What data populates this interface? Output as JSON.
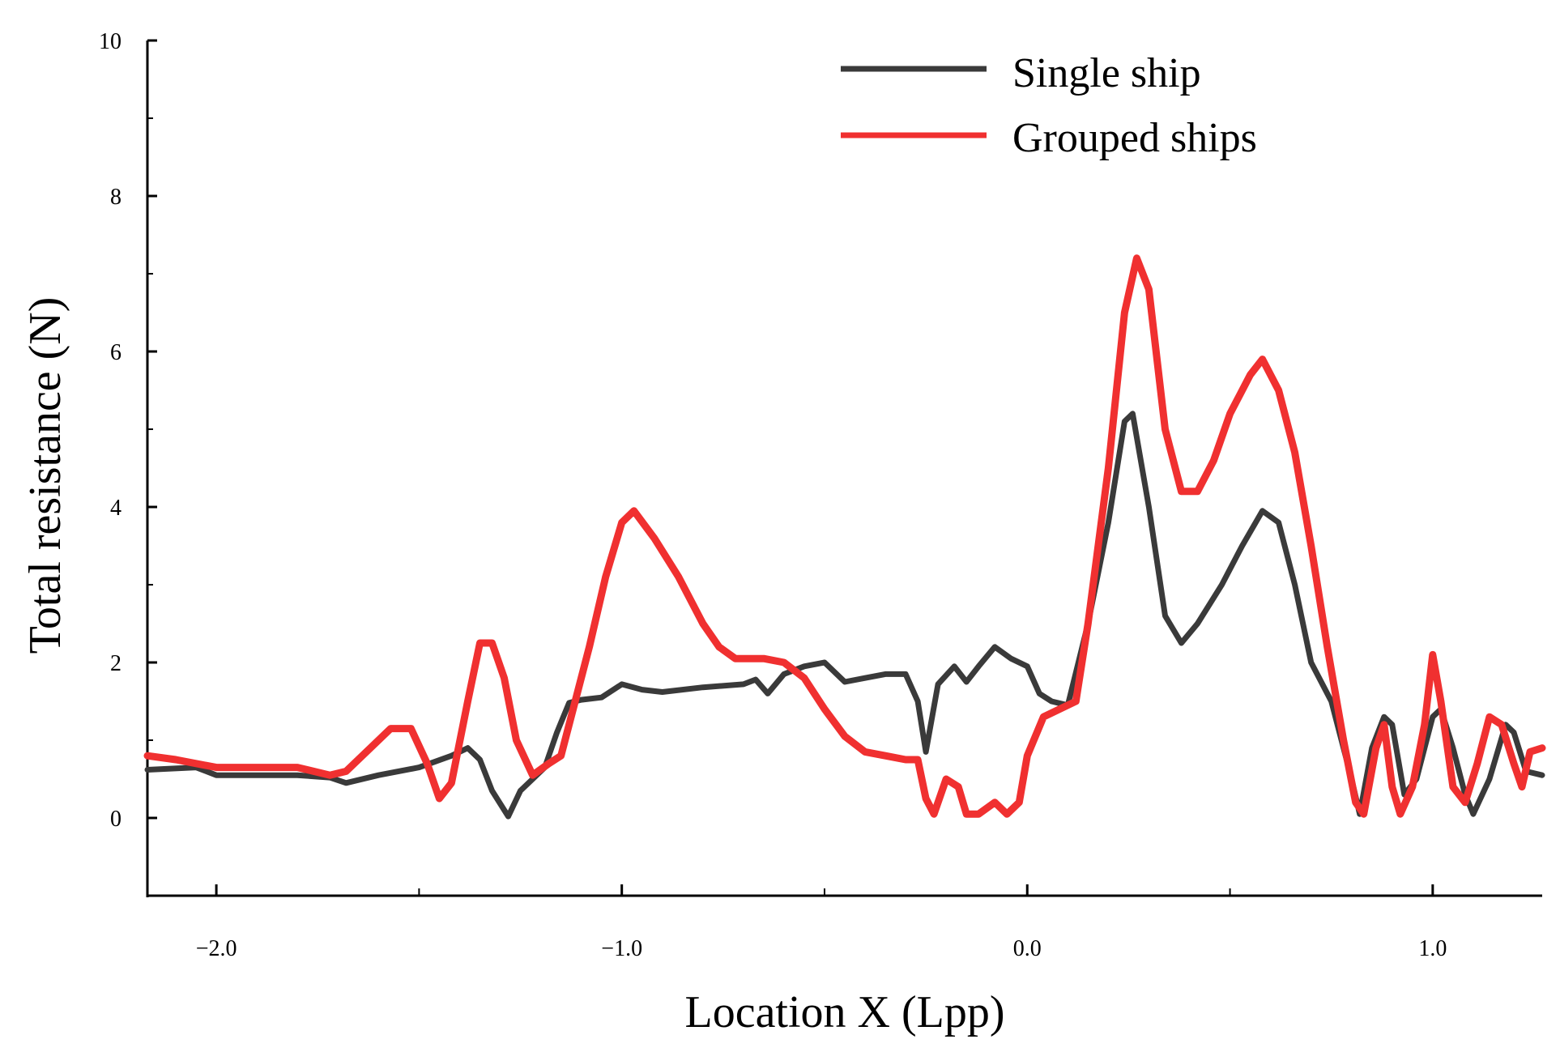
{
  "chart_data": {
    "type": "line",
    "title": "",
    "xlabel": "Location X (Lpp)",
    "ylabel": "Total resistance (N)",
    "xlim": [
      -2.17,
      1.27
    ],
    "ylim": [
      -1,
      10
    ],
    "x_ticks": [
      -2.0,
      -1.0,
      0.0,
      1.0
    ],
    "x_tick_labels": [
      "−2.0",
      "−1.0",
      "0.0",
      "1.0"
    ],
    "x_minor_ticks": [
      -1.5,
      -0.5,
      0.5
    ],
    "y_ticks": [
      0,
      2,
      4,
      6,
      8,
      10
    ],
    "y_tick_labels": [
      "0",
      "2",
      "4",
      "6",
      "8",
      "10"
    ],
    "grid": false,
    "legend_position": "top-right",
    "series": [
      {
        "name": "Single ship",
        "color": "#3a3a3a",
        "points": [
          [
            -2.17,
            0.62
          ],
          [
            -2.05,
            0.65
          ],
          [
            -2.0,
            0.55
          ],
          [
            -1.9,
            0.55
          ],
          [
            -1.8,
            0.55
          ],
          [
            -1.72,
            0.52
          ],
          [
            -1.68,
            0.45
          ],
          [
            -1.6,
            0.55
          ],
          [
            -1.5,
            0.65
          ],
          [
            -1.42,
            0.8
          ],
          [
            -1.38,
            0.9
          ],
          [
            -1.35,
            0.75
          ],
          [
            -1.32,
            0.35
          ],
          [
            -1.28,
            0.02
          ],
          [
            -1.25,
            0.35
          ],
          [
            -1.22,
            0.5
          ],
          [
            -1.19,
            0.65
          ],
          [
            -1.16,
            1.1
          ],
          [
            -1.13,
            1.48
          ],
          [
            -1.1,
            1.52
          ],
          [
            -1.05,
            1.55
          ],
          [
            -1.0,
            1.72
          ],
          [
            -0.95,
            1.65
          ],
          [
            -0.9,
            1.62
          ],
          [
            -0.8,
            1.68
          ],
          [
            -0.7,
            1.72
          ],
          [
            -0.67,
            1.78
          ],
          [
            -0.64,
            1.6
          ],
          [
            -0.6,
            1.85
          ],
          [
            -0.55,
            1.95
          ],
          [
            -0.5,
            2.0
          ],
          [
            -0.45,
            1.75
          ],
          [
            -0.4,
            1.8
          ],
          [
            -0.35,
            1.85
          ],
          [
            -0.3,
            1.85
          ],
          [
            -0.27,
            1.5
          ],
          [
            -0.25,
            0.85
          ],
          [
            -0.22,
            1.72
          ],
          [
            -0.18,
            1.95
          ],
          [
            -0.15,
            1.75
          ],
          [
            -0.12,
            1.95
          ],
          [
            -0.08,
            2.2
          ],
          [
            -0.04,
            2.05
          ],
          [
            0.0,
            1.95
          ],
          [
            0.03,
            1.6
          ],
          [
            0.06,
            1.5
          ],
          [
            0.1,
            1.45
          ],
          [
            0.15,
            2.5
          ],
          [
            0.2,
            3.8
          ],
          [
            0.24,
            5.1
          ],
          [
            0.26,
            5.2
          ],
          [
            0.3,
            4.0
          ],
          [
            0.34,
            2.6
          ],
          [
            0.38,
            2.25
          ],
          [
            0.42,
            2.5
          ],
          [
            0.48,
            3.0
          ],
          [
            0.53,
            3.5
          ],
          [
            0.58,
            3.95
          ],
          [
            0.62,
            3.8
          ],
          [
            0.66,
            3.0
          ],
          [
            0.7,
            2.0
          ],
          [
            0.75,
            1.5
          ],
          [
            0.8,
            0.5
          ],
          [
            0.82,
            0.05
          ],
          [
            0.85,
            0.9
          ],
          [
            0.88,
            1.3
          ],
          [
            0.9,
            1.2
          ],
          [
            0.93,
            0.3
          ],
          [
            0.96,
            0.5
          ],
          [
            1.0,
            1.3
          ],
          [
            1.02,
            1.4
          ],
          [
            1.05,
            0.9
          ],
          [
            1.08,
            0.3
          ],
          [
            1.1,
            0.05
          ],
          [
            1.14,
            0.5
          ],
          [
            1.18,
            1.2
          ],
          [
            1.2,
            1.1
          ],
          [
            1.23,
            0.6
          ],
          [
            1.27,
            0.55
          ]
        ]
      },
      {
        "name": "Grouped ships",
        "color": "#f03030",
        "points": [
          [
            -2.17,
            0.8
          ],
          [
            -2.1,
            0.75
          ],
          [
            -2.0,
            0.65
          ],
          [
            -1.9,
            0.65
          ],
          [
            -1.8,
            0.65
          ],
          [
            -1.72,
            0.55
          ],
          [
            -1.68,
            0.6
          ],
          [
            -1.62,
            0.9
          ],
          [
            -1.57,
            1.15
          ],
          [
            -1.52,
            1.15
          ],
          [
            -1.48,
            0.7
          ],
          [
            -1.45,
            0.25
          ],
          [
            -1.42,
            0.45
          ],
          [
            -1.38,
            1.5
          ],
          [
            -1.35,
            2.25
          ],
          [
            -1.32,
            2.25
          ],
          [
            -1.29,
            1.8
          ],
          [
            -1.26,
            1.0
          ],
          [
            -1.22,
            0.55
          ],
          [
            -1.18,
            0.7
          ],
          [
            -1.15,
            0.8
          ],
          [
            -1.12,
            1.4
          ],
          [
            -1.08,
            2.2
          ],
          [
            -1.04,
            3.1
          ],
          [
            -1.0,
            3.8
          ],
          [
            -0.97,
            3.95
          ],
          [
            -0.92,
            3.6
          ],
          [
            -0.86,
            3.1
          ],
          [
            -0.8,
            2.5
          ],
          [
            -0.76,
            2.2
          ],
          [
            -0.72,
            2.05
          ],
          [
            -0.65,
            2.05
          ],
          [
            -0.6,
            2.0
          ],
          [
            -0.55,
            1.8
          ],
          [
            -0.5,
            1.4
          ],
          [
            -0.45,
            1.05
          ],
          [
            -0.4,
            0.85
          ],
          [
            -0.35,
            0.8
          ],
          [
            -0.3,
            0.75
          ],
          [
            -0.27,
            0.75
          ],
          [
            -0.25,
            0.25
          ],
          [
            -0.23,
            0.05
          ],
          [
            -0.2,
            0.5
          ],
          [
            -0.17,
            0.4
          ],
          [
            -0.15,
            0.05
          ],
          [
            -0.12,
            0.05
          ],
          [
            -0.08,
            0.2
          ],
          [
            -0.05,
            0.05
          ],
          [
            -0.02,
            0.2
          ],
          [
            0.0,
            0.8
          ],
          [
            0.04,
            1.3
          ],
          [
            0.08,
            1.4
          ],
          [
            0.12,
            1.5
          ],
          [
            0.15,
            2.5
          ],
          [
            0.2,
            4.5
          ],
          [
            0.24,
            6.5
          ],
          [
            0.27,
            7.2
          ],
          [
            0.3,
            6.8
          ],
          [
            0.34,
            5.0
          ],
          [
            0.38,
            4.2
          ],
          [
            0.42,
            4.2
          ],
          [
            0.46,
            4.6
          ],
          [
            0.5,
            5.2
          ],
          [
            0.55,
            5.7
          ],
          [
            0.58,
            5.9
          ],
          [
            0.62,
            5.5
          ],
          [
            0.66,
            4.7
          ],
          [
            0.7,
            3.5
          ],
          [
            0.74,
            2.2
          ],
          [
            0.78,
            1.0
          ],
          [
            0.81,
            0.2
          ],
          [
            0.83,
            0.05
          ],
          [
            0.86,
            0.9
          ],
          [
            0.88,
            1.2
          ],
          [
            0.9,
            0.4
          ],
          [
            0.92,
            0.05
          ],
          [
            0.95,
            0.4
          ],
          [
            0.98,
            1.2
          ],
          [
            1.0,
            2.1
          ],
          [
            1.02,
            1.5
          ],
          [
            1.05,
            0.4
          ],
          [
            1.08,
            0.2
          ],
          [
            1.11,
            0.7
          ],
          [
            1.14,
            1.3
          ],
          [
            1.17,
            1.2
          ],
          [
            1.2,
            0.7
          ],
          [
            1.22,
            0.4
          ],
          [
            1.24,
            0.85
          ],
          [
            1.27,
            0.9
          ]
        ]
      }
    ]
  }
}
